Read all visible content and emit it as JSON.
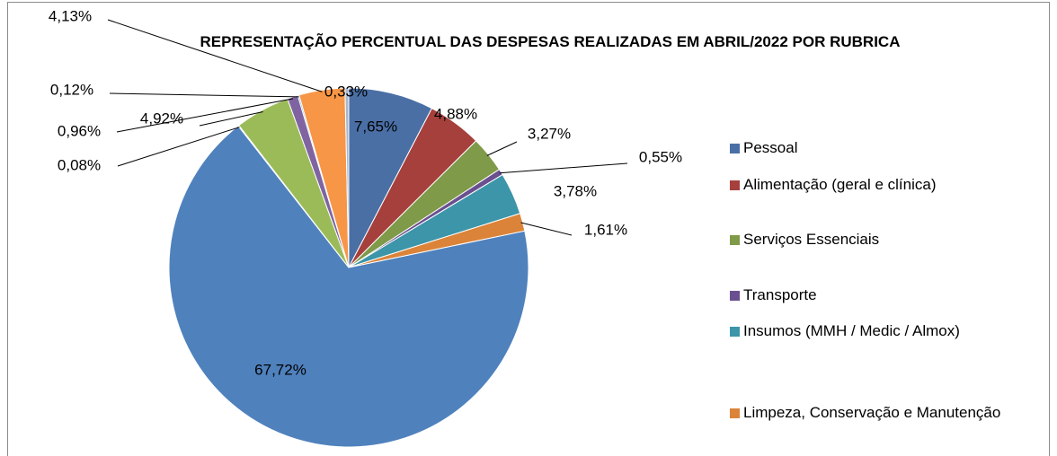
{
  "chart_data": {
    "type": "pie",
    "title": "REPRESENTAÇÃO PERCENTUAL DAS DESPESAS REALIZADAS EM ABRIL/2022 POR RUBRICA",
    "categories": [
      "Pessoal",
      "Alimentação (geral e clínica)",
      "Serviços Essenciais",
      "Transporte",
      "Insumos (MMH / Medic / Almox)",
      "Limpeza, Conservação e Manutenção",
      null,
      null,
      null,
      null,
      null,
      null,
      null
    ],
    "values": [
      7.65,
      4.88,
      3.27,
      0.55,
      3.78,
      1.61,
      67.72,
      0.08,
      4.92,
      0.96,
      0.12,
      4.13,
      0.33
    ],
    "value_labels": [
      "7,65%",
      "4,88%",
      "3,27%",
      "0,55%",
      "3,78%",
      "1,61%",
      "67,72%",
      "0,08%",
      "4,92%",
      "0,96%",
      "0,12%",
      "4,13%",
      "0,33%"
    ],
    "colors": [
      "#4a6fa5",
      "#a5403d",
      "#7f9a48",
      "#6a5090",
      "#3c95a8",
      "#db8439",
      "#4f81bd",
      "#c0504d",
      "#9bbb59",
      "#8064a2",
      "#4bacc6",
      "#f79646",
      "#a8b8d0"
    ],
    "legend": "right"
  }
}
